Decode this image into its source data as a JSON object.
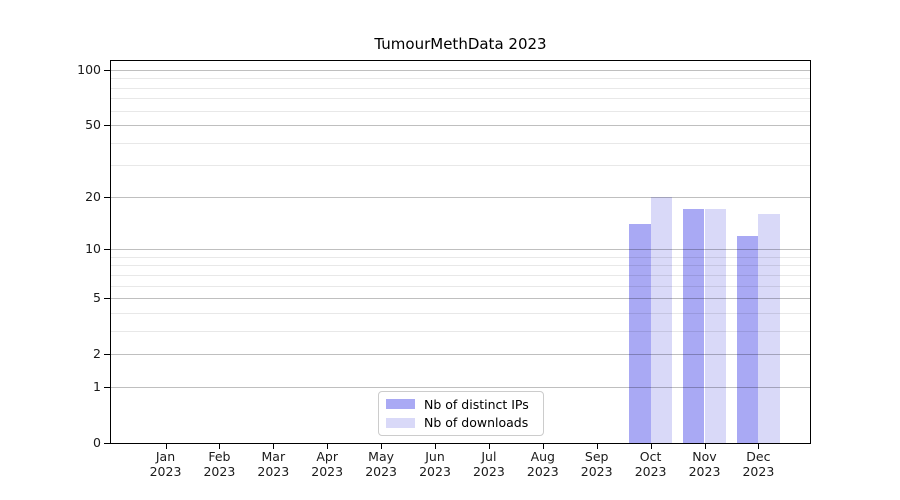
{
  "chart_data": {
    "type": "bar",
    "title": "TumourMethData 2023",
    "categories": [
      "Jan 2023",
      "Feb 2023",
      "Mar 2023",
      "Apr 2023",
      "May 2023",
      "Jun 2023",
      "Jul 2023",
      "Aug 2023",
      "Sep 2023",
      "Oct 2023",
      "Nov 2023",
      "Dec 2023"
    ],
    "series": [
      {
        "name": "Nb of distinct IPs",
        "color": "#a9a9f4",
        "values": [
          null,
          null,
          null,
          null,
          null,
          null,
          null,
          null,
          null,
          14,
          17,
          12
        ]
      },
      {
        "name": "Nb of downloads",
        "color": "#d9d9f8",
        "values": [
          null,
          null,
          null,
          null,
          null,
          null,
          null,
          null,
          null,
          20,
          17,
          16
        ]
      }
    ],
    "yscale": "log1p",
    "yticks": [
      0,
      1,
      2,
      5,
      10,
      20,
      50,
      100
    ],
    "yticks_minor": [
      3,
      4,
      6,
      7,
      8,
      9,
      30,
      40,
      60,
      70,
      80,
      90
    ],
    "ylim": [
      0,
      112
    ],
    "xlabel": "",
    "ylabel": "",
    "grid": true,
    "grid_major_color": "#bfbfbf",
    "grid_minor_color": "#e8e8e8",
    "axis_color": "#000000",
    "legend_position": "lower center"
  }
}
